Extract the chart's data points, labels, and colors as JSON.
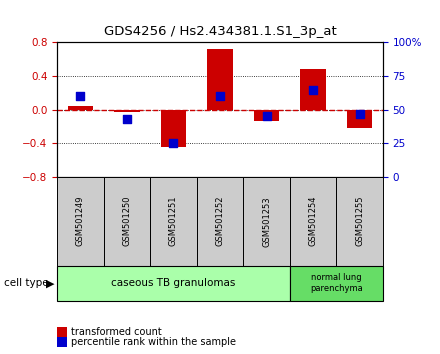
{
  "title": "GDS4256 / Hs2.434381.1.S1_3p_at",
  "samples": [
    "GSM501249",
    "GSM501250",
    "GSM501251",
    "GSM501252",
    "GSM501253",
    "GSM501254",
    "GSM501255"
  ],
  "transformed_count": [
    0.05,
    -0.03,
    -0.44,
    0.72,
    -0.13,
    0.48,
    -0.22
  ],
  "percentile_rank": [
    0.6,
    0.43,
    0.25,
    0.6,
    0.45,
    0.65,
    0.47
  ],
  "ylim_left": [
    -0.8,
    0.8
  ],
  "ylim_right": [
    0.0,
    1.0
  ],
  "yticks_left": [
    -0.8,
    -0.4,
    0.0,
    0.4,
    0.8
  ],
  "yticks_right": [
    0.0,
    0.25,
    0.5,
    0.75,
    1.0
  ],
  "ytick_labels_right": [
    "0",
    "25",
    "50",
    "75",
    "100%"
  ],
  "bar_color": "#cc0000",
  "dot_color": "#0000cc",
  "baseline_color": "#cc0000",
  "grid_color": "#000000",
  "cell_type_groups": [
    {
      "label": "caseous TB granulomas",
      "start": 0,
      "end": 4,
      "color": "#aaffaa"
    },
    {
      "label": "normal lung\nparenchyma",
      "start": 5,
      "end": 6,
      "color": "#66dd66"
    }
  ],
  "legend_items": [
    {
      "label": "transformed count",
      "color": "#cc0000"
    },
    {
      "label": "percentile rank within the sample",
      "color": "#0000cc"
    }
  ],
  "bar_width": 0.55,
  "dot_size": 40,
  "cell_type_label": "cell type",
  "bg_color": "#ffffff",
  "tick_color_left": "#cc0000",
  "tick_color_right": "#0000cc",
  "sample_box_color": "#cccccc"
}
